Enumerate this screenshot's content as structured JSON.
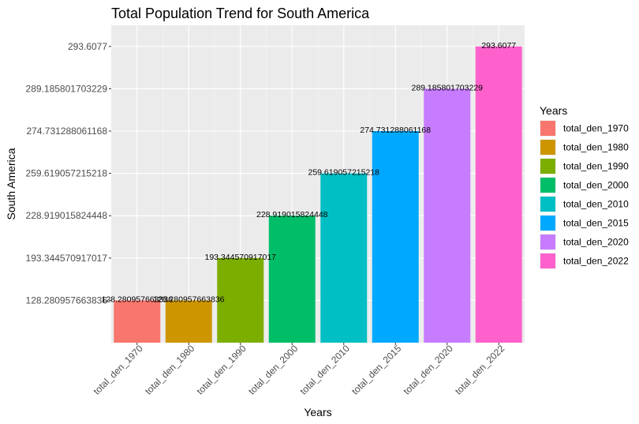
{
  "chart_data": {
    "type": "bar",
    "title": "Total Population Trend for South America",
    "xlabel": "Years",
    "ylabel": "South America",
    "categories": [
      "total_den_1970",
      "total_den_1980",
      "total_den_1990",
      "total_den_2000",
      "total_den_2010",
      "total_den_2015",
      "total_den_2020",
      "total_den_2022"
    ],
    "values": [
      128.280957663836,
      128.280957663836,
      193.344570917017,
      228.919015824448,
      259.619057215218,
      274.731288061168,
      289.185801703229,
      293.6077
    ],
    "value_labels": [
      "128.280957663836",
      "128.280957663836",
      "193.344570917017",
      "228.919015824448",
      "259.619057215218",
      "274.731288061168",
      "289.185801703229",
      "293.6077"
    ],
    "y_ticks": [
      "128.280957663836",
      "193.344570917017",
      "228.919015824448",
      "259.619057215218",
      "274.731288061168",
      "289.185801703229",
      "293.6077"
    ],
    "y_scale": "discrete",
    "colors": [
      "#F8766D",
      "#CD9600",
      "#7CAE00",
      "#00BE67",
      "#00BFC4",
      "#00A9FF",
      "#C77CFF",
      "#FF61CC"
    ],
    "legend": {
      "title": "Years",
      "placement": "right",
      "entries": [
        "total_den_1970",
        "total_den_1980",
        "total_den_1990",
        "total_den_2000",
        "total_den_2010",
        "total_den_2015",
        "total_den_2020",
        "total_den_2022"
      ]
    },
    "grid": true,
    "panel_background": "#EBEBEB"
  }
}
